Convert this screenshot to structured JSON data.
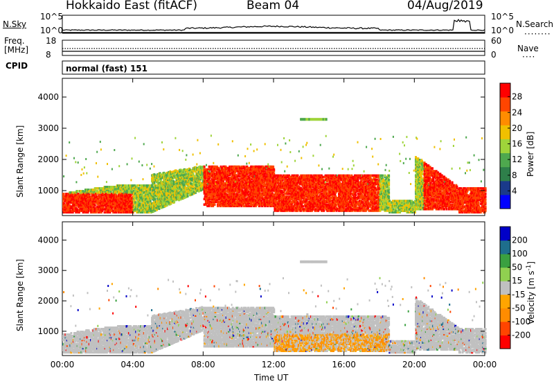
{
  "header": {
    "station": "Hokkaido East (fitACF)",
    "beam": "Beam 04",
    "date": "04/Aug/2019"
  },
  "noise_panel": {
    "left_label": "N.Sky",
    "right_label": "N.Search",
    "ticks": [
      "10^5",
      "10^0"
    ]
  },
  "freq_panel": {
    "left_label_1": "Freq.",
    "left_label_2": "[MHz]",
    "left_ticks": [
      "18",
      "8"
    ],
    "right_label": "Nave",
    "right_ticks": [
      "60",
      "0"
    ]
  },
  "cpid_panel": {
    "label": "CPID",
    "mode": "normal (fast) 151"
  },
  "colors": {
    "power_scale": [
      "#0000ff",
      "#1a3a8a",
      "#2e7f4a",
      "#4ea84e",
      "#9fd43a",
      "#f0c000",
      "#ff8c00",
      "#ff4500",
      "#ff0000"
    ],
    "velocity_scale": [
      "#ff0000",
      "#ff4500",
      "#ff8c00",
      "#ffa500",
      "#c0c0c0",
      "#90d050",
      "#3aa040",
      "#1e6e8c",
      "#0000c8"
    ],
    "gray": "#c0c0c0"
  },
  "chart_data": [
    {
      "type": "heatmap",
      "name": "power",
      "ylabel": "Slant Range [km]",
      "yticks": [
        1000,
        2000,
        3000,
        4000
      ],
      "ylim": [
        200,
        4600
      ],
      "xticks": [
        "00:00",
        "04:00",
        "08:00",
        "12:00",
        "16:00",
        "20:00",
        "00:00"
      ],
      "xlim": [
        0,
        24
      ],
      "colorbar": {
        "label": "Power [dB]",
        "ticks": [
          4,
          8,
          12,
          16,
          20,
          24,
          28
        ]
      }
    },
    {
      "type": "heatmap",
      "name": "velocity",
      "ylabel": "Slant Range [km]",
      "yticks": [
        1000,
        2000,
        3000,
        4000
      ],
      "ylim": [
        200,
        4600
      ],
      "xticks": [
        "00:00",
        "04:00",
        "08:00",
        "12:00",
        "16:00",
        "20:00",
        "00:00"
      ],
      "xlim": [
        0,
        24
      ],
      "xlabel": "Time UT",
      "colorbar": {
        "label": "Velocity [m s^-1]",
        "ticks": [
          200,
          100,
          50,
          15,
          -15,
          -50,
          -100,
          -200
        ]
      }
    }
  ]
}
